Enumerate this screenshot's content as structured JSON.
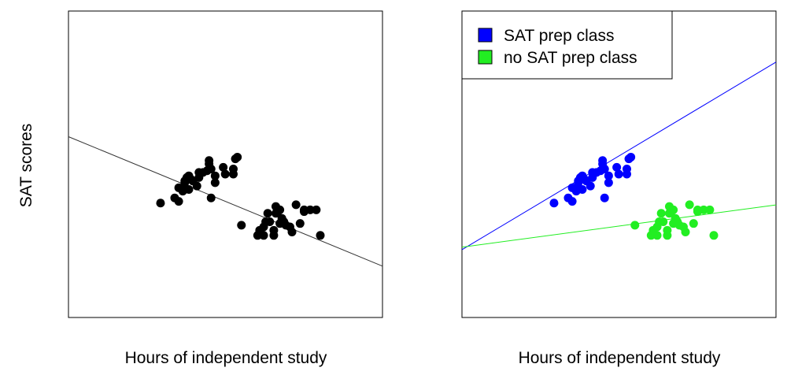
{
  "ylabel": "SAT scores",
  "chart_data": [
    {
      "type": "scatter",
      "title": "",
      "xlabel": "Hours of independent study",
      "ylabel": "SAT scores",
      "xlim": [
        0,
        100
      ],
      "ylim": [
        0,
        100
      ],
      "grid": false,
      "series": [
        {
          "color": "#000000",
          "points": [
            [
              21,
              39
            ],
            [
              28,
              42
            ],
            [
              30,
              40
            ],
            [
              32,
              48
            ],
            [
              30,
              48
            ],
            [
              33,
              51
            ],
            [
              35,
              55
            ],
            [
              33,
              52
            ],
            [
              37,
              52
            ],
            [
              34,
              54
            ],
            [
              36,
              53
            ],
            [
              32,
              46
            ],
            [
              35,
              47
            ],
            [
              39,
              49
            ],
            [
              40,
              57
            ],
            [
              40,
              54
            ],
            [
              44,
              58
            ],
            [
              42,
              57
            ],
            [
              45,
              62
            ],
            [
              45,
              64
            ],
            [
              46,
              59
            ],
            [
              48,
              55
            ],
            [
              48,
              51
            ],
            [
              53,
              56
            ],
            [
              52,
              60
            ],
            [
              57,
              56
            ],
            [
              57,
              59
            ],
            [
              58,
              65
            ],
            [
              59,
              66
            ],
            [
              46,
              42
            ],
            [
              61,
              26
            ],
            [
              69,
              20
            ],
            [
              70,
              23
            ],
            [
              72,
              25
            ],
            [
              72,
              20
            ],
            [
              73,
              28
            ],
            [
              74,
              33
            ],
            [
              75,
              28
            ],
            [
              77,
              20
            ],
            [
              77,
              23
            ],
            [
              78,
              37
            ],
            [
              78,
              33
            ],
            [
              79,
              34
            ],
            [
              80,
              27
            ],
            [
              80,
              35
            ],
            [
              81,
              30
            ],
            [
              82,
              28
            ],
            [
              83,
              26
            ],
            [
              85,
              25
            ],
            [
              86,
              22
            ],
            [
              88,
              38
            ],
            [
              90,
              27
            ],
            [
              92,
              35
            ],
            [
              92,
              34
            ],
            [
              95,
              35
            ],
            [
              98,
              35
            ],
            [
              100,
              20
            ]
          ],
          "fit_line": [
            [
              0,
              66
            ],
            [
              100,
              17
            ]
          ]
        }
      ]
    },
    {
      "type": "scatter",
      "title": "",
      "xlabel": "Hours of independent study",
      "ylabel": "",
      "xlim": [
        0,
        100
      ],
      "ylim": [
        0,
        100
      ],
      "grid": false,
      "legend": {
        "position": "top-left",
        "entries": [
          "SAT prep class",
          "no SAT prep class"
        ]
      },
      "series": [
        {
          "name": "SAT prep class",
          "color": "#0000ff",
          "points": [
            [
              21,
              39
            ],
            [
              28,
              42
            ],
            [
              30,
              40
            ],
            [
              32,
              48
            ],
            [
              30,
              48
            ],
            [
              33,
              51
            ],
            [
              35,
              55
            ],
            [
              33,
              52
            ],
            [
              37,
              52
            ],
            [
              34,
              54
            ],
            [
              36,
              53
            ],
            [
              32,
              46
            ],
            [
              35,
              47
            ],
            [
              39,
              49
            ],
            [
              40,
              57
            ],
            [
              40,
              54
            ],
            [
              44,
              58
            ],
            [
              42,
              57
            ],
            [
              45,
              62
            ],
            [
              45,
              64
            ],
            [
              46,
              59
            ],
            [
              48,
              55
            ],
            [
              48,
              51
            ],
            [
              53,
              56
            ],
            [
              52,
              60
            ],
            [
              57,
              56
            ],
            [
              57,
              59
            ],
            [
              58,
              65
            ],
            [
              59,
              66
            ],
            [
              46,
              42
            ]
          ],
          "fit_line": [
            [
              0,
              29
            ],
            [
              100,
              100
            ]
          ]
        },
        {
          "name": "no SAT prep class",
          "color": "#22ee22",
          "points": [
            [
              61,
              26
            ],
            [
              69,
              20
            ],
            [
              70,
              23
            ],
            [
              72,
              25
            ],
            [
              72,
              20
            ],
            [
              73,
              28
            ],
            [
              74,
              33
            ],
            [
              75,
              28
            ],
            [
              77,
              20
            ],
            [
              77,
              23
            ],
            [
              78,
              37
            ],
            [
              78,
              33
            ],
            [
              79,
              34
            ],
            [
              80,
              27
            ],
            [
              80,
              35
            ],
            [
              81,
              30
            ],
            [
              82,
              28
            ],
            [
              83,
              26
            ],
            [
              85,
              25
            ],
            [
              86,
              22
            ],
            [
              88,
              38
            ],
            [
              90,
              27
            ],
            [
              92,
              35
            ],
            [
              92,
              34
            ],
            [
              95,
              35
            ],
            [
              98,
              35
            ],
            [
              100,
              20
            ]
          ],
          "fit_line": [
            [
              0,
              17
            ],
            [
              125,
              37
            ]
          ]
        }
      ]
    }
  ]
}
